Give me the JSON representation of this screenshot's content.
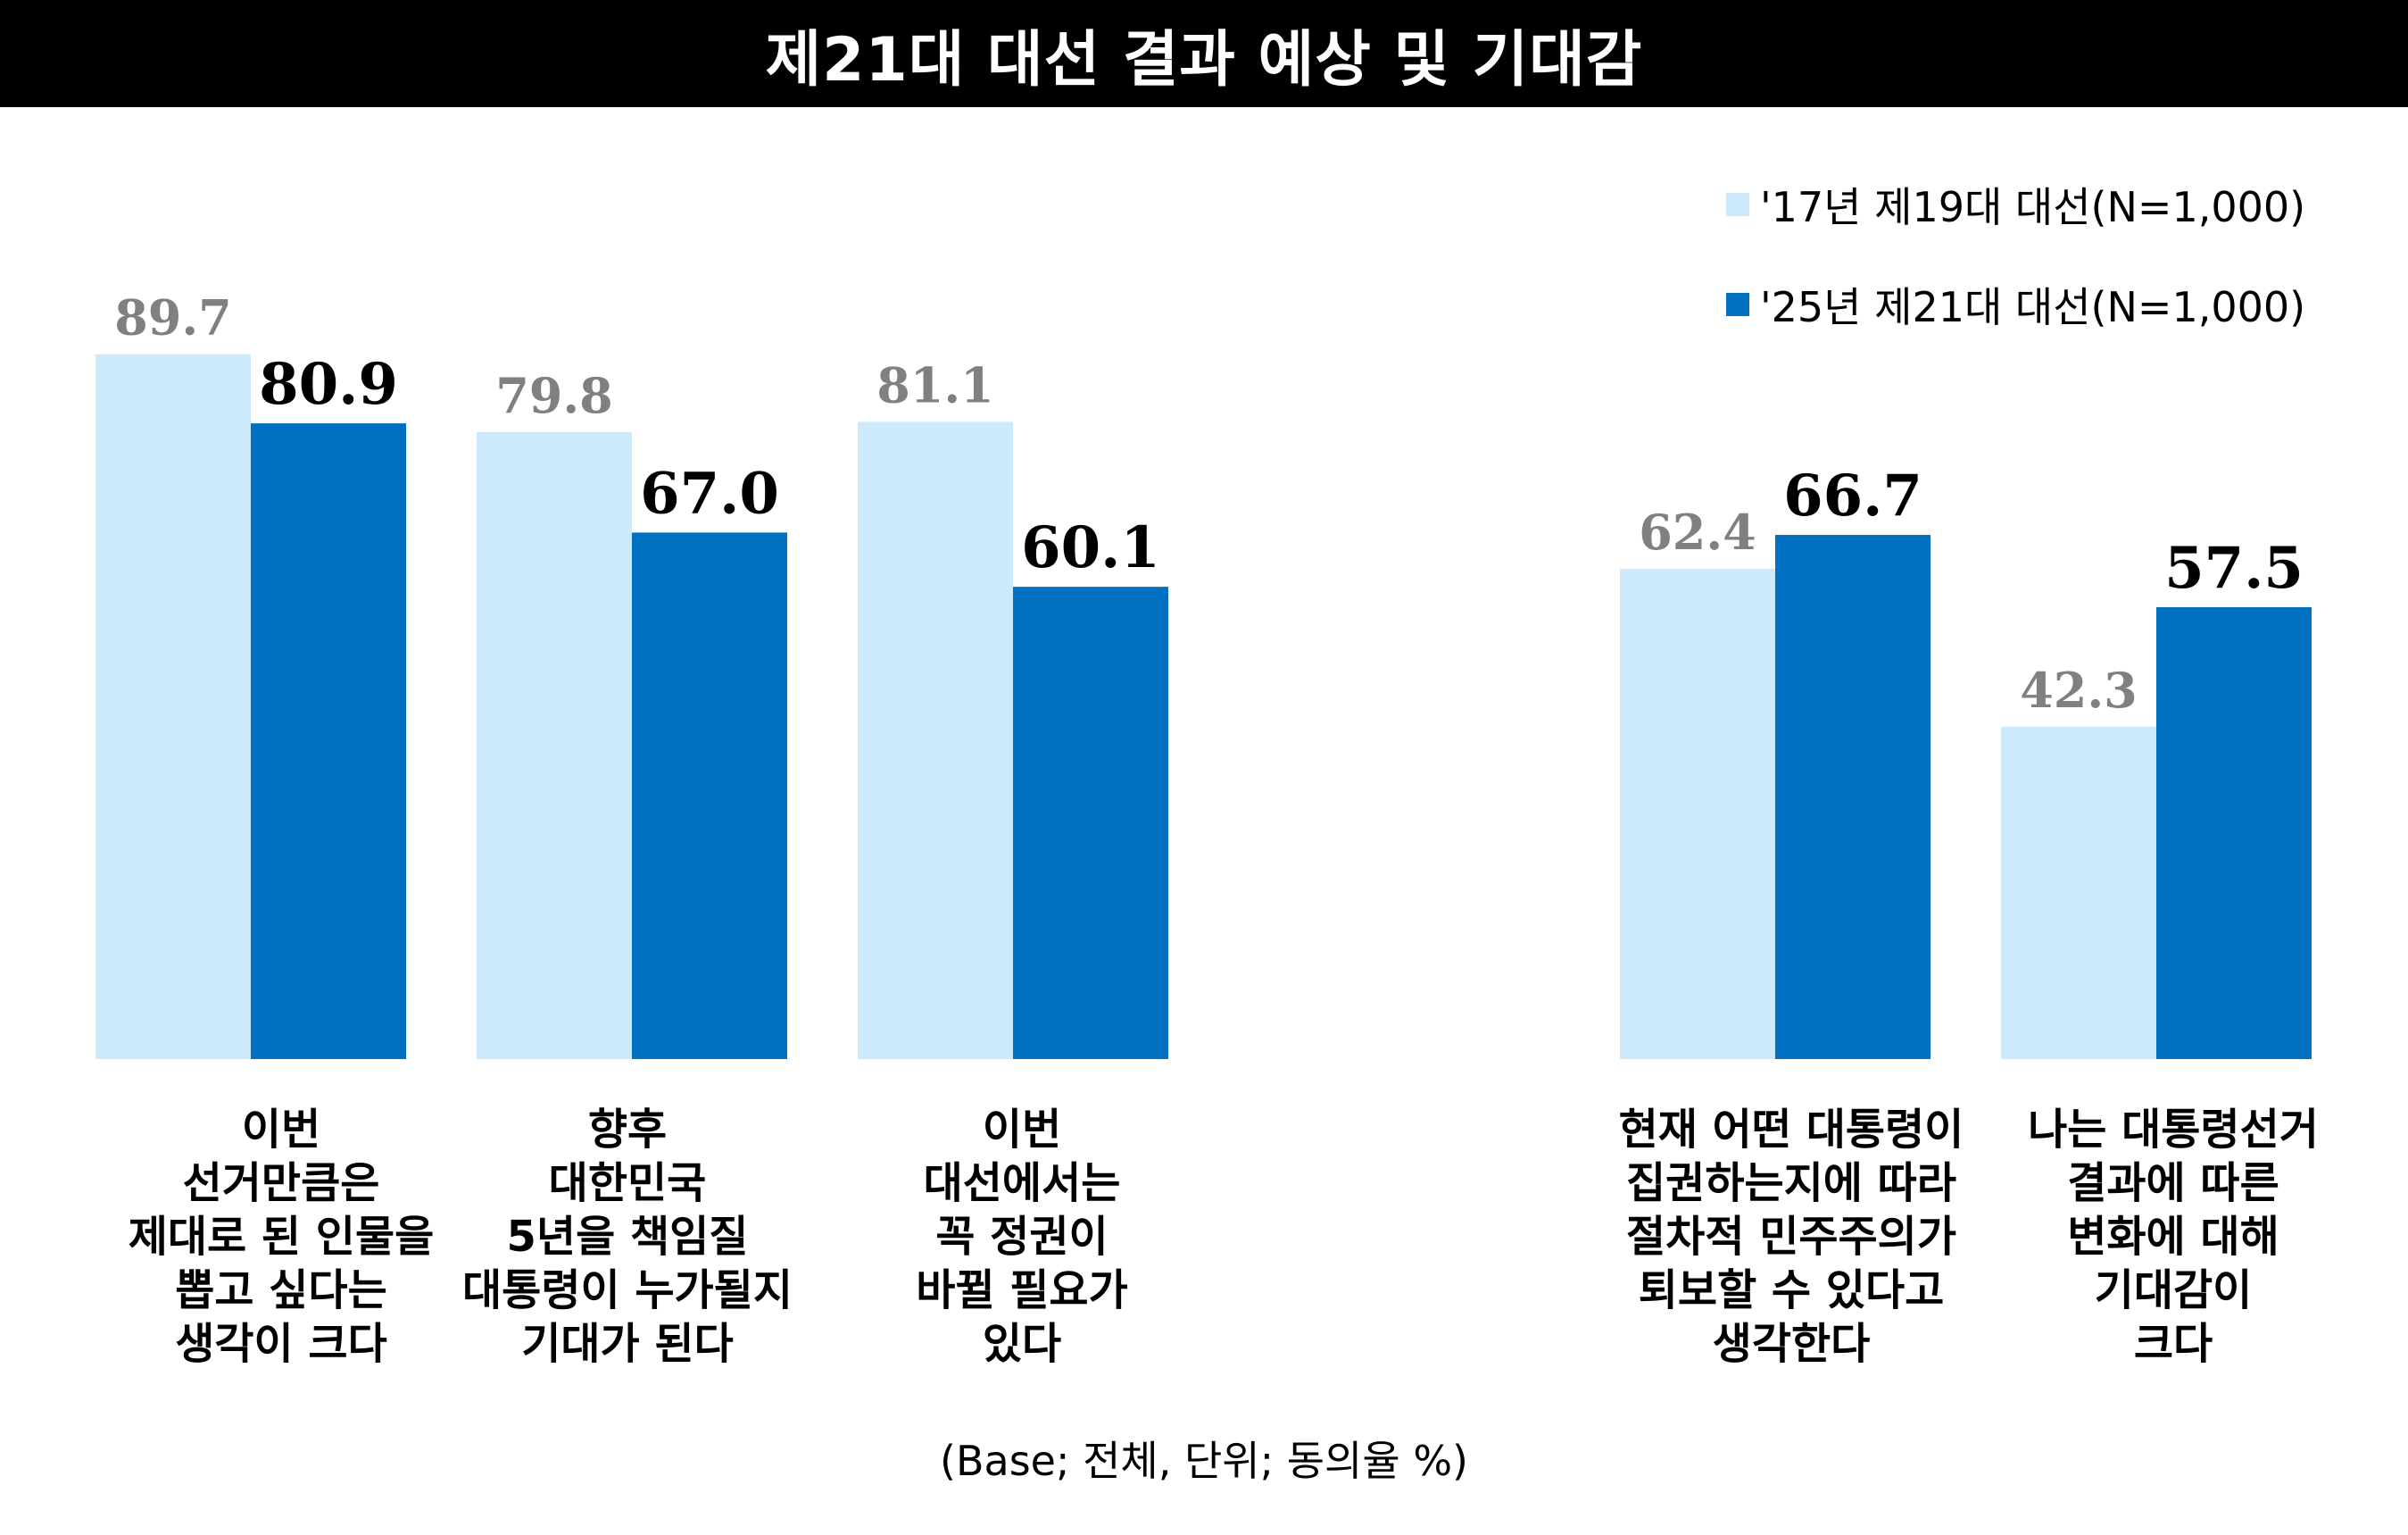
{
  "title": "제21대 대선 결과 예상 및 기대감",
  "note": "(Base; 전체, 단위; 동의율 %)",
  "colors": {
    "series_2017": "#cde9fc",
    "series_2025": "#0070c0",
    "label_2017": "#808080",
    "label_2025": "#000000"
  },
  "chart_data": {
    "type": "bar",
    "ylim": [
      0,
      100
    ],
    "grid": false,
    "legend_position": "top-right",
    "categories": [
      "이번\n선거만큼은\n제대로 된 인물을\n뽑고 싶다는\n생각이 크다",
      "향후\n대한민국\n5년을 책임질\n대통령이 누가될지\n기대가 된다",
      "이번\n대선에서는\n꼭 정권이\n바뀔 필요가\n있다",
      "현재 어떤 대통령이\n집권하는지에 따라\n절차적 민주주의가\n퇴보할 수 있다고\n생각한다",
      "나는 대통령선거\n결과에 따른\n변화에 대해\n기대감이\n크다"
    ],
    "series": [
      {
        "name": "'17년 제19대 대선(N=1,000)",
        "values": [
          89.7,
          79.8,
          81.1,
          62.4,
          42.3
        ],
        "labels": [
          "89.7",
          "79.8",
          "81.1",
          "62.4",
          "42.3"
        ]
      },
      {
        "name": "'25년 제21대 대선(N=1,000)",
        "values": [
          80.9,
          67.0,
          60.1,
          66.7,
          57.5
        ],
        "labels": [
          "80.9",
          "67.0",
          "60.1",
          "66.7",
          "57.5"
        ]
      }
    ]
  }
}
